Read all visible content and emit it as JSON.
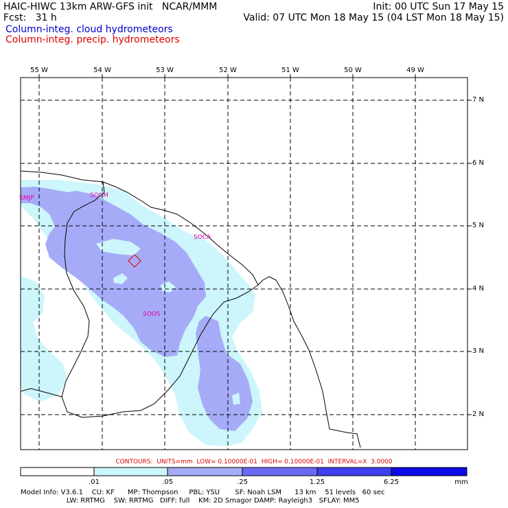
{
  "header": {
    "line1_left": "HAIC-HIWC 13km ARW-GFS init   NCAR/MMM",
    "line1_right": "Init: 00 UTC Sun 17 May 15",
    "line2_left": "Fcst:   31 h",
    "line2_right": "Valid: 07 UTC Mon 18 May 15 (04 LST Mon 18 May 15)",
    "field1": "Column-integ. cloud hydrometeors",
    "field2": "Column-integ. precip. hydrometeors"
  },
  "lon_labels": [
    "55 W",
    "54 W",
    "53 W",
    "52 W",
    "51 W",
    "50 W",
    "49 W"
  ],
  "lat_labels": [
    "7 N",
    "6 N",
    "5 N",
    "4 N",
    "3 N",
    "2 N"
  ],
  "stations": [
    {
      "name": "SMJP",
      "lon": -55.0,
      "lat": 5.45
    },
    {
      "name": "SOCM",
      "lon": -53.9,
      "lat": 5.5
    },
    {
      "name": "SOCA",
      "lon": -52.37,
      "lat": 4.8
    },
    {
      "name": "SOOS",
      "lon": -52.76,
      "lat": 3.7
    }
  ],
  "map": {
    "lon_range": [
      -55.3,
      -48.4
    ],
    "lat_range": [
      1.5,
      7.4
    ],
    "colors": {
      "light": "#ccf6fb",
      "medium": "#a6abf7",
      "coast": "#000000",
      "station": "#dd00aa",
      "marker": "#dd0000"
    }
  },
  "contours_text": "CONTOURS:  UNITS=mm  LOW= 0.10000E-01  HIGH= 0.10000E-01  INTERVAL=X  3.0000",
  "colorbar": {
    "labels": [
      ".01",
      ".05",
      ".25",
      "1.25",
      "6.25"
    ],
    "unit": "mm",
    "colors": [
      "#ffffff",
      "#ccf6fb",
      "#a6abf7",
      "#6a6af5",
      "#3f3ff0",
      "#0a0ae6"
    ]
  },
  "info": {
    "line1": "Model Info: V3.6.1    CU: KF      MP: Thompson     PBL: YSU       SF: Noah LSM      13 km    51 levels   60 sec",
    "line2": "                     LW: RRTMG    SW: RRTMG   DIFF: full    KM: 2D Smagor DAMP: Rayleigh3   SFLAY: MM5"
  }
}
